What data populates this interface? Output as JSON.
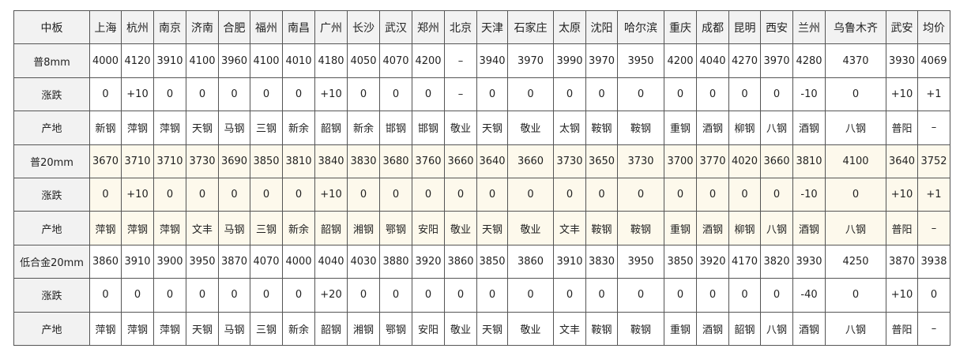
{
  "header": {
    "label": "中板",
    "cities": [
      "上海",
      "杭州",
      "南京",
      "济南",
      "合肥",
      "福州",
      "南昌",
      "广州",
      "长沙",
      "武汉",
      "郑州",
      "北京",
      "天津",
      "石家庄",
      "太原",
      "沈阳",
      "哈尔滨",
      "重庆",
      "成都",
      "昆明",
      "西安",
      "兰州",
      "乌鲁木齐",
      "武安",
      "均价"
    ]
  },
  "highlight_color": "#fdf9ec",
  "rows": [
    {
      "label": "普8mm",
      "group": 0,
      "values": [
        "4000",
        "4120",
        "3910",
        "4100",
        "3960",
        "4100",
        "4010",
        "4180",
        "4050",
        "4070",
        "4200",
        "–",
        "3940",
        "3970",
        "3990",
        "3970",
        "3950",
        "4200",
        "4040",
        "4270",
        "3970",
        "4280",
        "4370",
        "3930",
        "4069"
      ]
    },
    {
      "label": "涨跌",
      "group": 0,
      "values": [
        "0",
        "+10",
        "0",
        "0",
        "0",
        "0",
        "0",
        "+10",
        "0",
        "0",
        "0",
        "–",
        "0",
        "0",
        "0",
        "0",
        "0",
        "0",
        "0",
        "0",
        "0",
        "-10",
        "0",
        "+10",
        "+1"
      ]
    },
    {
      "label": "产地",
      "group": 0,
      "values": [
        "新钢",
        "萍钢",
        "萍钢",
        "天钢",
        "马钢",
        "三钢",
        "新余",
        "韶钢",
        "新余",
        "邯钢",
        "邯钢",
        "敬业",
        "天钢",
        "敬业",
        "太钢",
        "鞍钢",
        "鞍钢",
        "重钢",
        "酒钢",
        "柳钢",
        "八钢",
        "酒钢",
        "八钢",
        "普阳",
        "–"
      ]
    },
    {
      "label": "普20mm",
      "group": 1,
      "values": [
        "3670",
        "3710",
        "3710",
        "3730",
        "3690",
        "3850",
        "3810",
        "3840",
        "3830",
        "3680",
        "3760",
        "3660",
        "3640",
        "3660",
        "3730",
        "3650",
        "3730",
        "3700",
        "3770",
        "4020",
        "3660",
        "3810",
        "4100",
        "3640",
        "3752"
      ]
    },
    {
      "label": "涨跌",
      "group": 1,
      "values": [
        "0",
        "+10",
        "0",
        "0",
        "0",
        "0",
        "0",
        "+10",
        "0",
        "0",
        "0",
        "0",
        "0",
        "0",
        "0",
        "0",
        "0",
        "0",
        "0",
        "0",
        "0",
        "-10",
        "0",
        "+10",
        "+1"
      ]
    },
    {
      "label": "产地",
      "group": 1,
      "values": [
        "萍钢",
        "萍钢",
        "萍钢",
        "文丰",
        "马钢",
        "三钢",
        "新余",
        "韶钢",
        "湘钢",
        "鄂钢",
        "安阳",
        "敬业",
        "天钢",
        "敬业",
        "文丰",
        "鞍钢",
        "鞍钢",
        "重钢",
        "酒钢",
        "柳钢",
        "八钢",
        "酒钢",
        "八钢",
        "普阳",
        "–"
      ]
    },
    {
      "label": "低合金20mm",
      "group": 2,
      "values": [
        "3860",
        "3910",
        "3900",
        "3950",
        "3870",
        "4070",
        "4000",
        "4040",
        "4030",
        "3880",
        "3920",
        "3860",
        "3850",
        "3860",
        "3910",
        "3830",
        "3950",
        "3850",
        "3920",
        "4170",
        "3820",
        "3930",
        "4250",
        "3870",
        "3938"
      ]
    },
    {
      "label": "涨跌",
      "group": 2,
      "values": [
        "0",
        "0",
        "0",
        "0",
        "0",
        "0",
        "0",
        "+20",
        "0",
        "0",
        "0",
        "0",
        "0",
        "0",
        "0",
        "0",
        "0",
        "0",
        "0",
        "0",
        "0",
        "-40",
        "0",
        "+10",
        "0"
      ]
    },
    {
      "label": "产地",
      "group": 2,
      "values": [
        "萍钢",
        "萍钢",
        "萍钢",
        "天钢",
        "马钢",
        "三钢",
        "新余",
        "韶钢",
        "湘钢",
        "鄂钢",
        "安阳",
        "敬业",
        "天钢",
        "敬业",
        "文丰",
        "鞍钢",
        "鞍钢",
        "重钢",
        "酒钢",
        "韶钢",
        "八钢",
        "酒钢",
        "八钢",
        "普阳",
        "–"
      ]
    }
  ]
}
